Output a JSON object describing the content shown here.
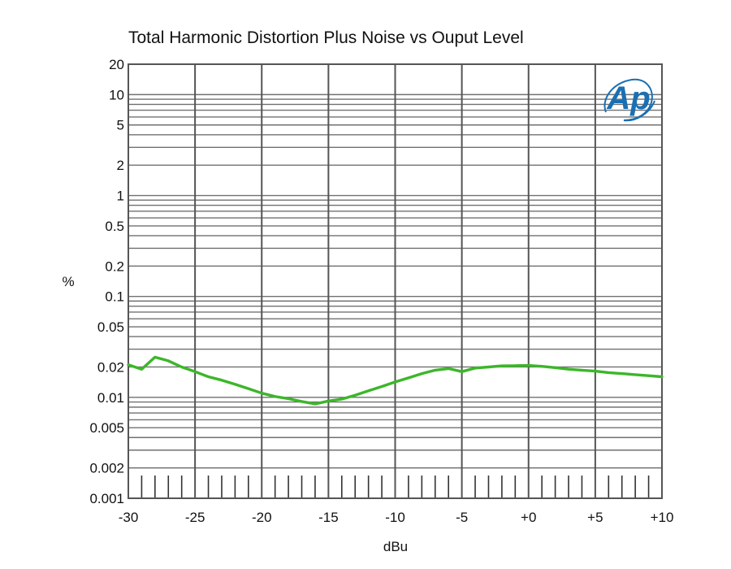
{
  "chart_data": {
    "type": "line",
    "title": "Total Harmonic Distortion Plus Noise vs Ouput Level",
    "xlabel": "dBu",
    "ylabel": "%",
    "xlim": [
      -30,
      10
    ],
    "ylim": [
      0.001,
      20
    ],
    "y_scale": "log",
    "grid": true,
    "x_ticks": [
      -30,
      -25,
      -20,
      -15,
      -10,
      -5,
      0,
      5,
      10
    ],
    "x_tick_labels": [
      "-30",
      "-25",
      "-20",
      "-15",
      "-10",
      "-5",
      "+0",
      "+5",
      "+10"
    ],
    "y_ticks": [
      0.001,
      0.002,
      0.005,
      0.01,
      0.02,
      0.05,
      0.1,
      0.2,
      0.5,
      1,
      2,
      5,
      10,
      20
    ],
    "y_tick_labels": [
      "0.001",
      "0.002",
      "0.005",
      "0.01",
      "0.02",
      "0.05",
      "0.1",
      "0.2",
      "0.5",
      "1",
      "2",
      "5",
      "10",
      "20"
    ],
    "series": [
      {
        "color": "#3cb62a",
        "x": [
          -30,
          -29,
          -28,
          -27,
          -26,
          -25,
          -24,
          -23,
          -22,
          -21,
          -20,
          -19,
          -18,
          -17,
          -16,
          -15,
          -14,
          -13,
          -12,
          -11,
          -10,
          -9,
          -8,
          -7,
          -6,
          -5,
          -4,
          -3,
          -2,
          -1,
          0,
          1,
          2,
          3,
          4,
          5,
          6,
          7,
          8,
          9,
          10
        ],
        "y": [
          0.021,
          0.019,
          0.025,
          0.023,
          0.02,
          0.018,
          0.016,
          0.0148,
          0.0135,
          0.0122,
          0.011,
          0.0102,
          0.0097,
          0.0091,
          0.0086,
          0.0092,
          0.0096,
          0.0105,
          0.0116,
          0.0128,
          0.0142,
          0.0156,
          0.0172,
          0.0186,
          0.0193,
          0.018,
          0.0195,
          0.02,
          0.0205,
          0.0206,
          0.0207,
          0.0203,
          0.0197,
          0.019,
          0.0186,
          0.0182,
          0.0176,
          0.0172,
          0.0168,
          0.0164,
          0.016
        ]
      }
    ]
  },
  "logo": {
    "text": "Ap",
    "color": "#1a6fb2"
  }
}
